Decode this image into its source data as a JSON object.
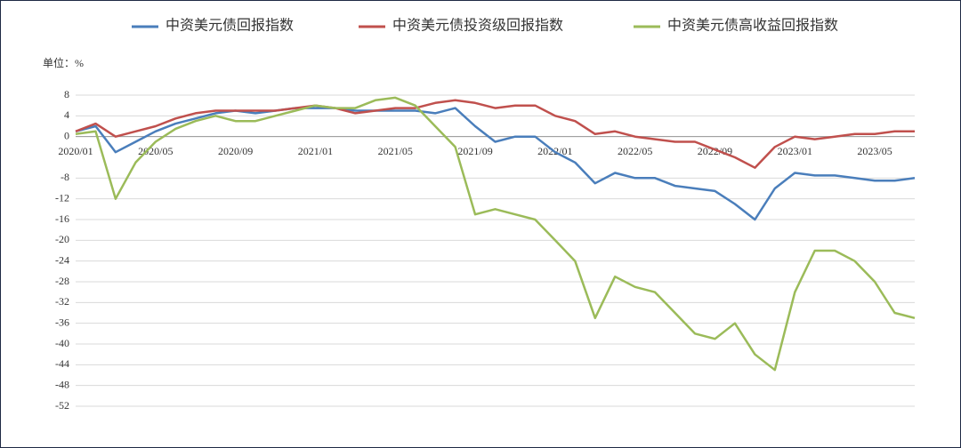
{
  "chart_data": {
    "type": "line",
    "y_label": "单位：%",
    "x": [
      "2020/01",
      "2020/02",
      "2020/03",
      "2020/04",
      "2020/05",
      "2020/06",
      "2020/07",
      "2020/08",
      "2020/09",
      "2020/10",
      "2020/11",
      "2020/12",
      "2021/01",
      "2021/02",
      "2021/03",
      "2021/04",
      "2021/05",
      "2021/06",
      "2021/07",
      "2021/08",
      "2021/09",
      "2021/10",
      "2021/11",
      "2021/12",
      "2022/01",
      "2022/02",
      "2022/03",
      "2022/04",
      "2022/05",
      "2022/06",
      "2022/07",
      "2022/08",
      "2022/09",
      "2022/10",
      "2022/11",
      "2022/12",
      "2023/01",
      "2023/02",
      "2023/03",
      "2023/04",
      "2023/05",
      "2023/06",
      "2023/07"
    ],
    "xticks": [
      "2020/01",
      "2020/05",
      "2020/09",
      "2021/01",
      "2021/05",
      "2021/09",
      "2022/01",
      "2022/05",
      "2022/09",
      "2023/01",
      "2023/05"
    ],
    "series": [
      {
        "name": "中资美元债回报指数",
        "color": "#4a7ebb",
        "values": [
          1,
          2,
          -3,
          -1,
          1,
          2.5,
          3.5,
          4.5,
          5,
          4.5,
          5,
          5.5,
          5.5,
          5.5,
          5,
          5,
          5,
          5,
          4.5,
          5.5,
          2,
          -1,
          0,
          0,
          -3,
          -5,
          -9,
          -7,
          -8,
          -8,
          -9.5,
          -10,
          -10.5,
          -13,
          -16,
          -10,
          -7,
          -7.5,
          -7.5,
          -8,
          -8.5,
          -8.5,
          -8
        ]
      },
      {
        "name": "中资美元债投资级回报指数",
        "color": "#c0504d",
        "values": [
          1,
          2.5,
          0,
          1,
          2,
          3.5,
          4.5,
          5,
          5,
          5,
          5,
          5.5,
          6,
          5.5,
          4.5,
          5,
          5.5,
          5.5,
          6.5,
          7,
          6.5,
          5.5,
          6,
          6,
          4,
          3,
          0.5,
          1,
          0,
          -0.5,
          -1,
          -1,
          -2.5,
          -4,
          -6,
          -2,
          0,
          -0.5,
          0,
          0.5,
          0.5,
          1,
          1
        ]
      },
      {
        "name": "中资美元债高收益回报指数",
        "color": "#9bbb59",
        "values": [
          0.5,
          1,
          -12,
          -5,
          -1,
          1.5,
          3,
          4,
          3,
          3,
          4,
          5,
          6,
          5.5,
          5.5,
          7,
          7.5,
          6,
          2,
          -2,
          -15,
          -14,
          -15,
          -16,
          -20,
          -24,
          -35,
          -27,
          -29,
          -30,
          -34,
          -38,
          -39,
          -36,
          -42,
          -45,
          -30,
          -22,
          -22,
          -24,
          -28,
          -34,
          -35
        ]
      }
    ],
    "ylim": [
      -52,
      8
    ],
    "yticks": [
      8,
      4,
      0,
      -8,
      -12,
      -16,
      -20,
      -24,
      -28,
      -32,
      -36,
      -40,
      -44,
      -48,
      -52
    ],
    "grid": true
  }
}
